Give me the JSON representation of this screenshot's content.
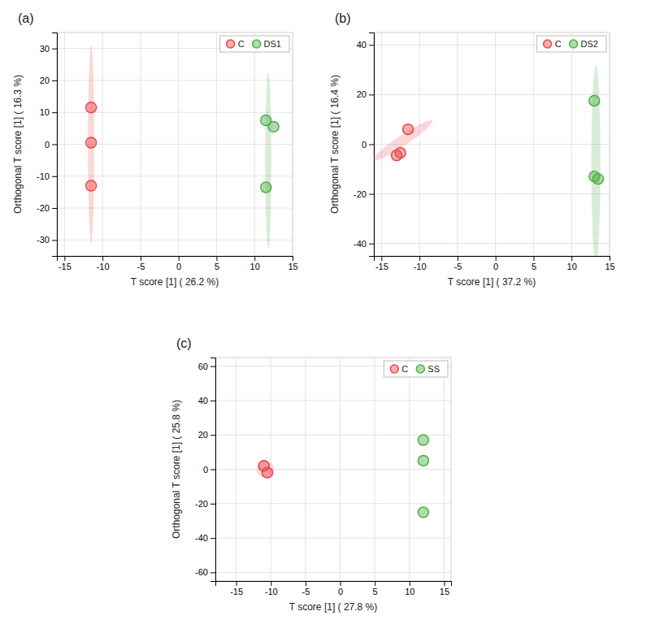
{
  "chart_data": [
    {
      "type": "scatter",
      "title": "(a)",
      "x_label": "T score [1] ( 26.2 %)",
      "y_label": "Orthogonal T score [1] ( 16.3 %)",
      "xlim": [
        -16,
        15
      ],
      "ylim": [
        -35,
        35
      ],
      "xticks": [
        -15,
        -10,
        -5,
        0,
        5,
        10,
        15
      ],
      "yticks": [
        -30,
        -20,
        -10,
        0,
        10,
        20,
        30
      ],
      "grid": true,
      "legend": "top-right",
      "series": [
        {
          "name": "C",
          "color": "#E8474C",
          "x": [
            -11.5,
            -11.5,
            -11.5
          ],
          "values": [
            11.5,
            0.5,
            -13
          ],
          "ellipse": {
            "cx": -11.5,
            "cy": 0,
            "width": 0.8,
            "height": 62,
            "angle": 0
          }
        },
        {
          "name": "DS1",
          "color": "#4DAF4A",
          "x": [
            11.5,
            12.5,
            11.5
          ],
          "values": [
            7.5,
            5.5,
            -13.5
          ],
          "ellipse": {
            "cx": 11.8,
            "cy": -5,
            "width": 0.8,
            "height": 55,
            "angle": 0
          }
        }
      ]
    },
    {
      "type": "scatter",
      "title": "(b)",
      "x_label": "T score [1] ( 37.2 %)",
      "y_label": "Orthogonal T score [1] ( 16.4 %)",
      "xlim": [
        -16,
        15
      ],
      "ylim": [
        -45,
        45
      ],
      "xticks": [
        -15,
        -10,
        -5,
        0,
        5,
        10,
        15
      ],
      "yticks": [
        -40,
        -20,
        0,
        20,
        40
      ],
      "grid": true,
      "legend": "top-right",
      "series": [
        {
          "name": "C",
          "color": "#E8474C",
          "x": [
            -11.5,
            -12.5,
            -13
          ],
          "values": [
            6,
            -3.5,
            -4.5
          ],
          "ellipse": {
            "cx": -12.2,
            "cy": 1.5,
            "width": 2.2,
            "height": 18,
            "angle": -25
          }
        },
        {
          "name": "DS2",
          "color": "#4DAF4A",
          "x": [
            13,
            13,
            13.5
          ],
          "values": [
            17.5,
            -13,
            -14
          ],
          "ellipse": {
            "cx": 13.2,
            "cy": -8,
            "width": 1.2,
            "height": 80,
            "angle": 0
          }
        }
      ]
    },
    {
      "type": "scatter",
      "title": "(c)",
      "x_label": "T score [1] ( 27.8 %)",
      "y_label": "Orthogonal T score [1] ( 25.8 %)",
      "xlim": [
        -18,
        16
      ],
      "ylim": [
        -65,
        65
      ],
      "xticks": [
        -15,
        -10,
        -5,
        0,
        5,
        10,
        15
      ],
      "yticks": [
        -60,
        -40,
        -20,
        0,
        20,
        40,
        60
      ],
      "grid": true,
      "legend": "top-right",
      "series": [
        {
          "name": "C",
          "color": "#E8474C",
          "x": [
            -11,
            -10.5
          ],
          "values": [
            2,
            -2
          ],
          "ellipse": {
            "cx": -10.8,
            "cy": 0,
            "width": 2.5,
            "height": 10,
            "angle": 0
          }
        },
        {
          "name": "SS",
          "color": "#4DAF4A",
          "x": [
            12,
            12,
            12
          ],
          "values": [
            17,
            5,
            -25
          ]
        }
      ]
    }
  ]
}
